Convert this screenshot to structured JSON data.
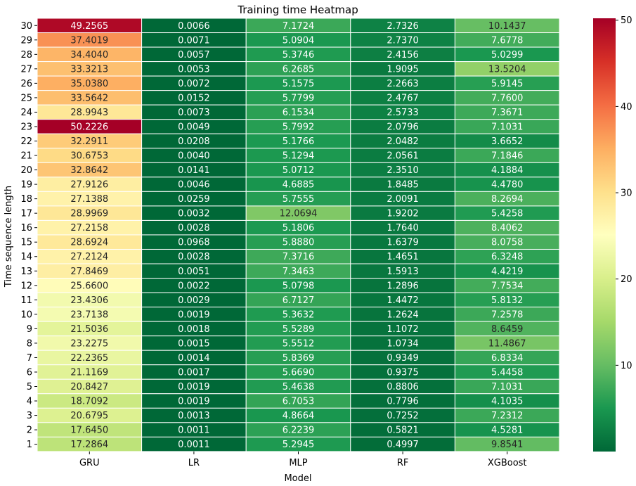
{
  "chart_data": {
    "type": "heatmap",
    "title": "Training time Heatmap",
    "xlabel": "Model",
    "ylabel": "Time sequence length",
    "columns": [
      "GRU",
      "LR",
      "MLP",
      "RF",
      "XGBoost"
    ],
    "rows": [
      "30",
      "29",
      "28",
      "27",
      "26",
      "25",
      "24",
      "23",
      "22",
      "21",
      "20",
      "19",
      "18",
      "17",
      "16",
      "15",
      "14",
      "13",
      "12",
      "11",
      "10",
      "9",
      "8",
      "7",
      "6",
      "5",
      "4",
      "3",
      "2",
      "1"
    ],
    "values": [
      [
        "49.2565",
        "0.0066",
        "7.1724",
        "2.7326",
        "10.1437"
      ],
      [
        "37.4019",
        "0.0071",
        "5.0904",
        "2.7370",
        "7.6778"
      ],
      [
        "34.4040",
        "0.0057",
        "5.3746",
        "2.4156",
        "5.0299"
      ],
      [
        "33.3213",
        "0.0053",
        "6.2685",
        "1.9095",
        "13.5204"
      ],
      [
        "35.0380",
        "0.0072",
        "5.1575",
        "2.2663",
        "5.9145"
      ],
      [
        "33.5642",
        "0.0152",
        "5.7799",
        "2.4767",
        "7.7600"
      ],
      [
        "28.9943",
        "0.0073",
        "6.1534",
        "2.5733",
        "7.3671"
      ],
      [
        "50.2226",
        "0.0049",
        "5.7992",
        "2.0796",
        "7.1031"
      ],
      [
        "32.2911",
        "0.0208",
        "5.1766",
        "2.0482",
        "3.6652"
      ],
      [
        "30.6753",
        "0.0040",
        "5.1294",
        "2.0561",
        "7.1846"
      ],
      [
        "32.8642",
        "0.0141",
        "5.0712",
        "2.3510",
        "4.1884"
      ],
      [
        "27.9126",
        "0.0046",
        "4.6885",
        "1.8485",
        "4.4780"
      ],
      [
        "27.1388",
        "0.0259",
        "5.7555",
        "2.0091",
        "8.2694"
      ],
      [
        "28.9969",
        "0.0032",
        "12.0694",
        "1.9202",
        "5.4258"
      ],
      [
        "27.2158",
        "0.0028",
        "5.1806",
        "1.7640",
        "8.4062"
      ],
      [
        "28.6924",
        "0.0968",
        "5.8880",
        "1.6379",
        "8.0758"
      ],
      [
        "27.2124",
        "0.0028",
        "7.3716",
        "1.4651",
        "6.3248"
      ],
      [
        "27.8469",
        "0.0051",
        "7.3463",
        "1.5913",
        "4.4219"
      ],
      [
        "25.6600",
        "0.0022",
        "5.0798",
        "1.2896",
        "7.7534"
      ],
      [
        "23.4306",
        "0.0029",
        "6.7127",
        "1.4472",
        "5.8132"
      ],
      [
        "23.7138",
        "0.0019",
        "5.3632",
        "1.2624",
        "7.2578"
      ],
      [
        "21.5036",
        "0.0018",
        "5.5289",
        "1.1072",
        "8.6459"
      ],
      [
        "23.2275",
        "0.0015",
        "5.5512",
        "1.0734",
        "11.4867"
      ],
      [
        "22.2365",
        "0.0014",
        "5.8369",
        "0.9349",
        "6.8334"
      ],
      [
        "21.1169",
        "0.0017",
        "5.6690",
        "0.9375",
        "5.4458"
      ],
      [
        "20.8427",
        "0.0019",
        "5.4638",
        "0.8806",
        "7.1031"
      ],
      [
        "18.7092",
        "0.0019",
        "6.7053",
        "0.7796",
        "4.1035"
      ],
      [
        "20.6795",
        "0.0013",
        "4.8664",
        "0.7252",
        "7.2312"
      ],
      [
        "17.6450",
        "0.0011",
        "6.2239",
        "0.5821",
        "4.5281"
      ],
      [
        "17.2864",
        "0.0011",
        "5.2945",
        "0.4997",
        "9.8541"
      ]
    ],
    "colormap": "RdYlGn_r",
    "vmin": 0.0011,
    "vmax": 50.2226,
    "colorbar_ticks": [
      "10",
      "20",
      "30",
      "40",
      "50"
    ],
    "grid": false,
    "annotations": true
  }
}
